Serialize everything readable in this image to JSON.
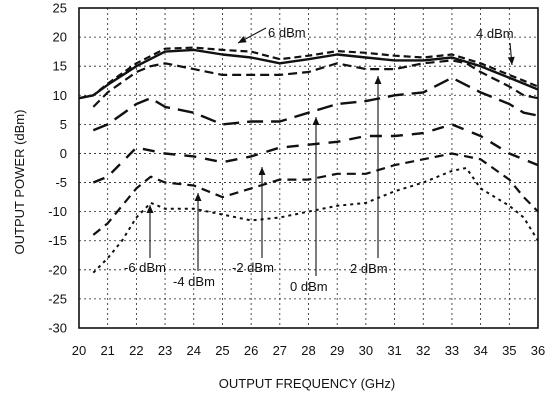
{
  "chart_data": {
    "type": "line",
    "xlabel": "OUTPUT FREQUENCY (GHz)",
    "ylabel": "OUTPUT POWER (dBm)",
    "xlim": [
      20,
      36
    ],
    "ylim": [
      -30,
      25
    ],
    "x_ticks": [
      "20",
      "21",
      "22",
      "23",
      "24",
      "25",
      "26",
      "27",
      "28",
      "29",
      "30",
      "31",
      "32",
      "33",
      "34",
      "35",
      "36"
    ],
    "y_ticks": [
      "25",
      "20",
      "15",
      "10",
      "5",
      "0",
      "-5",
      "-10",
      "-15",
      "-20",
      "-25",
      "-30"
    ],
    "grid": true,
    "series": [
      {
        "name": "6 dBm",
        "x": [
          20,
          20.5,
          21,
          22,
          23,
          24,
          25,
          26,
          27,
          28,
          29,
          30,
          31,
          32,
          33,
          34,
          35,
          35.5,
          36
        ],
        "values": [
          9.5,
          10,
          12,
          15.5,
          18,
          18.2,
          17.8,
          17.5,
          16.2,
          16.8,
          17.6,
          17.3,
          16.8,
          16.5,
          17,
          15.5,
          13.5,
          12.5,
          11.5
        ]
      },
      {
        "name": "4 dBm",
        "x": [
          20,
          20.5,
          21,
          22,
          23,
          24,
          25,
          26,
          27,
          28,
          29,
          30,
          31,
          32,
          33,
          34,
          35,
          35.5,
          36
        ],
        "values": [
          9.5,
          10,
          11.8,
          15,
          17.5,
          17.8,
          17,
          16.5,
          15.5,
          16.2,
          17,
          16.5,
          16,
          16,
          16.5,
          15,
          13,
          12,
          11
        ]
      },
      {
        "name": "2 dBm",
        "x": [
          20.5,
          21,
          22,
          22.5,
          23,
          24,
          25,
          26,
          27,
          28,
          29,
          30,
          31,
          32,
          33,
          33.5,
          34,
          35,
          35.5,
          36
        ],
        "values": [
          8,
          10.5,
          14,
          15,
          15.5,
          14.5,
          13.5,
          13.5,
          13.5,
          14,
          15.5,
          14.5,
          14.5,
          15.5,
          16,
          15.5,
          14,
          11.5,
          10,
          9.5
        ]
      },
      {
        "name": "0 dBm",
        "x": [
          20.5,
          21,
          22,
          22.5,
          23,
          24,
          25,
          26,
          27,
          28,
          29,
          30,
          31,
          32,
          33,
          34,
          35,
          35.5,
          36
        ],
        "values": [
          4,
          5,
          8.5,
          9.5,
          8,
          7,
          5,
          5.5,
          5.5,
          7,
          8.5,
          9,
          10,
          10.5,
          13,
          10.5,
          8.5,
          7,
          6.5
        ]
      },
      {
        "name": "-2 dBm",
        "x": [
          20.5,
          21,
          22,
          23,
          24,
          25,
          26,
          27,
          28,
          29,
          30,
          31,
          32,
          33,
          34,
          35,
          35.5,
          36
        ],
        "values": [
          -5,
          -4,
          1,
          0,
          -0.5,
          -1.5,
          -0.5,
          1,
          1.5,
          2,
          3,
          3,
          3.5,
          5,
          3,
          0,
          -1,
          -2
        ]
      },
      {
        "name": "-4 dBm",
        "x": [
          20.5,
          21,
          21.5,
          22,
          22.5,
          23,
          24,
          25,
          26,
          27,
          28,
          29,
          30,
          31,
          32,
          33,
          34,
          35,
          35.5,
          36
        ],
        "values": [
          -14,
          -12,
          -9,
          -6,
          -4,
          -5,
          -5.5,
          -7.5,
          -6,
          -4.5,
          -4.5,
          -3.5,
          -3.5,
          -2,
          -1,
          0,
          -1,
          -4.5,
          -7.5,
          -10
        ]
      },
      {
        "name": "-6 dBm",
        "x": [
          20.5,
          21,
          21.5,
          22,
          22.5,
          23,
          24,
          25,
          26,
          27,
          28,
          29,
          30,
          31,
          32,
          33,
          33.5,
          34,
          35,
          35.5,
          36
        ],
        "values": [
          -20.5,
          -18,
          -15,
          -11,
          -8.5,
          -9.5,
          -9.5,
          -10.5,
          -11.5,
          -11,
          -10,
          -9,
          -8.5,
          -6.5,
          -5,
          -3,
          -2.5,
          -6,
          -9,
          -11,
          -15
        ]
      }
    ],
    "annotations": [
      {
        "text": "6 dBm"
      },
      {
        "text": "4 dBm"
      },
      {
        "text": "2 dBm"
      },
      {
        "text": "0 dBm"
      },
      {
        "text": "-2 dBm"
      },
      {
        "text": "-4 dBm"
      },
      {
        "text": "-6 dBm"
      }
    ]
  }
}
